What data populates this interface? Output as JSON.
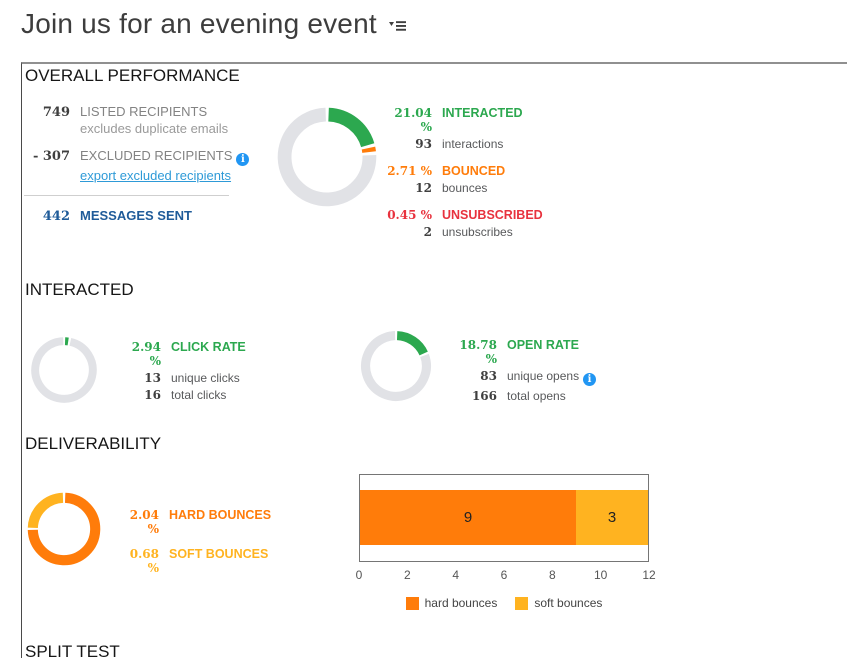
{
  "title": {
    "text": "Join us for an evening event"
  },
  "colors": {
    "green": "#2ca84f",
    "orange": "#ff7c0a",
    "amber": "#ffb320",
    "red": "#e8323e",
    "ring_gray": "#e1e2e6",
    "link_blue": "#2e9ad7",
    "sent_blue": "#1f5b99"
  },
  "sections": {
    "overall": {
      "heading": "OVERALL PERFORMANCE",
      "recipients": {
        "listed": {
          "value": "749",
          "label": "LISTED RECIPIENTS",
          "sub": "excludes duplicate emails"
        },
        "excluded": {
          "value": "- 307",
          "label": "EXCLUDED RECIPIENTS",
          "link": "export excluded recipients"
        },
        "sent": {
          "value": "442",
          "label": "MESSAGES SENT"
        }
      },
      "metrics": [
        {
          "pct": "21.04 %",
          "name": "INTERACTED",
          "count": "93",
          "count_label": "interactions",
          "color": "#2ca84f"
        },
        {
          "pct": "2.71 %",
          "name": "BOUNCED",
          "count": "12",
          "count_label": "bounces",
          "color": "#ff7c0a"
        },
        {
          "pct": "0.45 %",
          "name": "UNSUBSCRIBED",
          "count": "2",
          "count_label": "unsubscribes",
          "color": "#e8323e"
        }
      ]
    },
    "interacted": {
      "heading": "INTERACTED",
      "click": {
        "pct": "2.94 %",
        "name": "CLICK RATE",
        "color": "#2ca84f",
        "rows": [
          {
            "count": "13",
            "label": "unique clicks"
          },
          {
            "count": "16",
            "label": "total clicks"
          }
        ]
      },
      "open": {
        "pct": "18.78 %",
        "name": "OPEN RATE",
        "color": "#2ca84f",
        "rows": [
          {
            "count": "83",
            "label": "unique opens"
          },
          {
            "count": "166",
            "label": "total opens"
          }
        ]
      }
    },
    "deliverability": {
      "heading": "DELIVERABILITY",
      "metrics": [
        {
          "pct": "2.04 %",
          "name": "HARD BOUNCES",
          "color": "#ff7c0a"
        },
        {
          "pct": "0.68 %",
          "name": "SOFT BOUNCES",
          "color": "#ffb320"
        }
      ]
    },
    "split_test": {
      "heading": "SPLIT TEST"
    }
  },
  "chart_data": {
    "donuts": {
      "overall": {
        "type": "pie",
        "thickness": 13,
        "slices": [
          {
            "label": "interacted",
            "value": 21.04,
            "color": "#2ca84f"
          },
          {
            "label": "bounced",
            "value": 2.71,
            "color": "#ff7c0a"
          },
          {
            "label": "remainder",
            "value": 76.25,
            "color": "#e1e2e6"
          }
        ]
      },
      "click_rate": {
        "type": "pie",
        "thickness": 11,
        "slices": [
          {
            "label": "click rate",
            "value": 2.94,
            "color": "#2ca84f"
          },
          {
            "label": "remainder",
            "value": 97.06,
            "color": "#e1e2e6"
          }
        ]
      },
      "open_rate": {
        "type": "pie",
        "thickness": 12,
        "slices": [
          {
            "label": "open rate",
            "value": 18.78,
            "color": "#2ca84f"
          },
          {
            "label": "remainder",
            "value": 81.22,
            "color": "#e1e2e6"
          }
        ]
      },
      "bounces": {
        "type": "pie",
        "thickness": 13,
        "slices": [
          {
            "label": "hard bounces",
            "value": 9,
            "color": "#ff7c0a"
          },
          {
            "label": "soft bounces",
            "value": 3,
            "color": "#ffb320"
          }
        ]
      }
    },
    "bar": {
      "type": "bar",
      "orientation": "horizontal",
      "stacked": true,
      "xlim": [
        0,
        12
      ],
      "ticks": [
        0,
        2,
        4,
        6,
        8,
        10,
        12
      ],
      "series": [
        {
          "name": "hard bounces",
          "value": 9,
          "color": "#ff7c0a"
        },
        {
          "name": "soft bounces",
          "value": 3,
          "color": "#ffb320"
        }
      ]
    }
  }
}
